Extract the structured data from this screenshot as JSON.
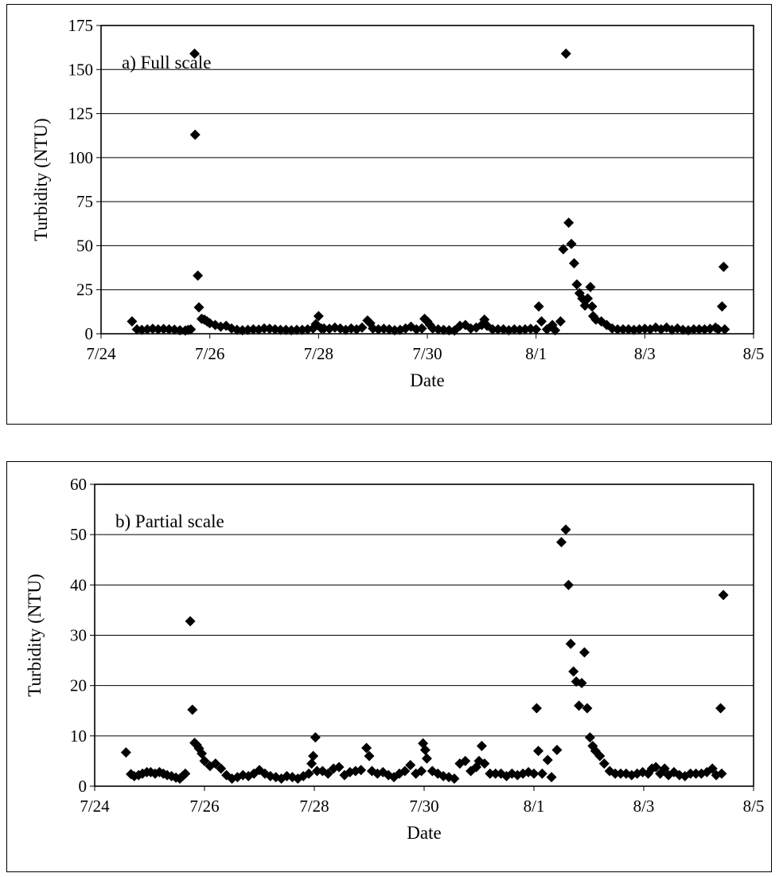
{
  "chart_data": [
    {
      "type": "scatter",
      "title": "a) Full scale",
      "xlabel": "Date",
      "ylabel": "Turbidity (NTU)",
      "x_ticks": [
        "7/24",
        "7/26",
        "7/28",
        "7/30",
        "8/1",
        "8/3",
        "8/5"
      ],
      "y_ticks": [
        "0",
        "25",
        "50",
        "75",
        "100",
        "125",
        "150",
        "175"
      ],
      "xlim_days": [
        0,
        12
      ],
      "ylim": [
        0,
        175
      ],
      "grid": "horizontal",
      "marker": "diamond",
      "series_color": "#000000",
      "points": [
        [
          0.57,
          7
        ],
        [
          0.66,
          2.5
        ],
        [
          0.75,
          2.2
        ],
        [
          0.85,
          2.5
        ],
        [
          0.95,
          2.8
        ],
        [
          1.05,
          2.5
        ],
        [
          1.15,
          2.7
        ],
        [
          1.25,
          2.5
        ],
        [
          1.35,
          2.3
        ],
        [
          1.45,
          2
        ],
        [
          1.55,
          1.8
        ],
        [
          1.6,
          2.2
        ],
        [
          1.65,
          2.5
        ],
        [
          1.72,
          159
        ],
        [
          1.73,
          113
        ],
        [
          1.78,
          33
        ],
        [
          1.8,
          15
        ],
        [
          1.85,
          8.5
        ],
        [
          1.9,
          8
        ],
        [
          1.95,
          7
        ],
        [
          2.0,
          6
        ],
        [
          2.1,
          5
        ],
        [
          2.2,
          4
        ],
        [
          2.3,
          4.5
        ],
        [
          2.4,
          3
        ],
        [
          2.5,
          2.2
        ],
        [
          2.6,
          2
        ],
        [
          2.7,
          2.2
        ],
        [
          2.8,
          2.5
        ],
        [
          2.9,
          2.3
        ],
        [
          3.0,
          3
        ],
        [
          3.1,
          2.8
        ],
        [
          3.2,
          2.5
        ],
        [
          3.3,
          2.2
        ],
        [
          3.4,
          2.2
        ],
        [
          3.5,
          2
        ],
        [
          3.6,
          2.2
        ],
        [
          3.7,
          2.2
        ],
        [
          3.8,
          2.5
        ],
        [
          3.9,
          3
        ],
        [
          3.95,
          5.5
        ],
        [
          4.0,
          10
        ],
        [
          4.05,
          3
        ],
        [
          4.1,
          3
        ],
        [
          4.2,
          2.8
        ],
        [
          4.3,
          3.5
        ],
        [
          4.4,
          3
        ],
        [
          4.5,
          2.2
        ],
        [
          4.6,
          3
        ],
        [
          4.7,
          2.5
        ],
        [
          4.8,
          3.5
        ],
        [
          4.9,
          7.5
        ],
        [
          4.95,
          6
        ],
        [
          5.0,
          3
        ],
        [
          5.1,
          2.5
        ],
        [
          5.2,
          2.8
        ],
        [
          5.3,
          2.5
        ],
        [
          5.4,
          2
        ],
        [
          5.5,
          2.2
        ],
        [
          5.6,
          3
        ],
        [
          5.7,
          4
        ],
        [
          5.8,
          2.5
        ],
        [
          5.9,
          3
        ],
        [
          5.95,
          8.5
        ],
        [
          6.0,
          7
        ],
        [
          6.05,
          5
        ],
        [
          6.1,
          3
        ],
        [
          6.2,
          2.5
        ],
        [
          6.3,
          2.2
        ],
        [
          6.4,
          2
        ],
        [
          6.5,
          1.8
        ],
        [
          6.6,
          4.5
        ],
        [
          6.7,
          5
        ],
        [
          6.8,
          3
        ],
        [
          6.9,
          3.5
        ],
        [
          7.0,
          5
        ],
        [
          7.05,
          8
        ],
        [
          7.1,
          4.5
        ],
        [
          7.2,
          2.5
        ],
        [
          7.3,
          2.5
        ],
        [
          7.4,
          2.5
        ],
        [
          7.5,
          2
        ],
        [
          7.6,
          2.5
        ],
        [
          7.7,
          2.2
        ],
        [
          7.8,
          2.5
        ],
        [
          7.9,
          2.8
        ],
        [
          8.0,
          2.5
        ],
        [
          8.05,
          15.5
        ],
        [
          8.1,
          7
        ],
        [
          8.2,
          2.5
        ],
        [
          8.3,
          5
        ],
        [
          8.35,
          2
        ],
        [
          8.45,
          7
        ],
        [
          8.5,
          48
        ],
        [
          8.55,
          159
        ],
        [
          8.6,
          63
        ],
        [
          8.65,
          51
        ],
        [
          8.7,
          40
        ],
        [
          8.75,
          28
        ],
        [
          8.8,
          23
        ],
        [
          8.85,
          20
        ],
        [
          8.9,
          16
        ],
        [
          8.95,
          20
        ],
        [
          9.0,
          26.5
        ],
        [
          9.03,
          15.5
        ],
        [
          9.05,
          10
        ],
        [
          9.1,
          8
        ],
        [
          9.2,
          7
        ],
        [
          9.3,
          5
        ],
        [
          9.4,
          3
        ],
        [
          9.5,
          2.5
        ],
        [
          9.6,
          2.5
        ],
        [
          9.7,
          2.5
        ],
        [
          9.8,
          2.2
        ],
        [
          9.9,
          2.5
        ],
        [
          10.0,
          2.8
        ],
        [
          10.1,
          2.5
        ],
        [
          10.2,
          3.5
        ],
        [
          10.3,
          2.5
        ],
        [
          10.4,
          3.5
        ],
        [
          10.5,
          2.2
        ],
        [
          10.6,
          3
        ],
        [
          10.7,
          2.2
        ],
        [
          10.8,
          2
        ],
        [
          10.9,
          2.5
        ],
        [
          11.0,
          2.5
        ],
        [
          11.1,
          2.5
        ],
        [
          11.2,
          2.8
        ],
        [
          11.3,
          3.5
        ],
        [
          11.35,
          2.5
        ],
        [
          11.42,
          15.5
        ],
        [
          11.45,
          38
        ],
        [
          11.47,
          2.5
        ]
      ]
    },
    {
      "type": "scatter",
      "title": "b) Partial scale",
      "xlabel": "Date",
      "ylabel": "Turbidity (NTU)",
      "x_ticks": [
        "7/24",
        "7/26",
        "7/28",
        "7/30",
        "8/1",
        "8/3",
        "8/5"
      ],
      "y_ticks": [
        "0",
        "10",
        "20",
        "30",
        "40",
        "50",
        "60"
      ],
      "xlim_days": [
        0,
        12
      ],
      "ylim": [
        0,
        60
      ],
      "grid": "horizontal",
      "marker": "diamond",
      "series_color": "#000000",
      "points": [
        [
          0.57,
          6.7
        ],
        [
          0.66,
          2.4
        ],
        [
          0.72,
          2
        ],
        [
          0.8,
          2.2
        ],
        [
          0.87,
          2.5
        ],
        [
          0.95,
          2.8
        ],
        [
          1.02,
          2.8
        ],
        [
          1.1,
          2.5
        ],
        [
          1.18,
          2.8
        ],
        [
          1.25,
          2.5
        ],
        [
          1.32,
          2.2
        ],
        [
          1.4,
          2
        ],
        [
          1.48,
          1.7
        ],
        [
          1.55,
          1.5
        ],
        [
          1.6,
          2
        ],
        [
          1.65,
          2.5
        ],
        [
          1.74,
          32.8
        ],
        [
          1.78,
          15.2
        ],
        [
          1.82,
          8.6
        ],
        [
          1.86,
          8.2
        ],
        [
          1.9,
          7.5
        ],
        [
          1.95,
          6.5
        ],
        [
          2.0,
          5
        ],
        [
          2.1,
          4
        ],
        [
          2.2,
          4.5
        ],
        [
          2.3,
          3.5
        ],
        [
          2.4,
          2.2
        ],
        [
          2.5,
          1.5
        ],
        [
          2.6,
          1.8
        ],
        [
          2.7,
          2.2
        ],
        [
          2.8,
          2
        ],
        [
          2.9,
          2.5
        ],
        [
          3.0,
          3.2
        ],
        [
          3.1,
          2.5
        ],
        [
          3.2,
          2
        ],
        [
          3.3,
          1.8
        ],
        [
          3.4,
          1.5
        ],
        [
          3.5,
          2
        ],
        [
          3.6,
          1.8
        ],
        [
          3.7,
          1.5
        ],
        [
          3.8,
          2
        ],
        [
          3.9,
          2.5
        ],
        [
          3.95,
          4.5
        ],
        [
          3.98,
          6
        ],
        [
          4.02,
          9.7
        ],
        [
          4.05,
          3
        ],
        [
          4.15,
          3
        ],
        [
          4.25,
          2.5
        ],
        [
          4.35,
          3.5
        ],
        [
          4.45,
          3.8
        ],
        [
          4.55,
          2.2
        ],
        [
          4.65,
          2.8
        ],
        [
          4.75,
          3
        ],
        [
          4.85,
          3.2
        ],
        [
          4.95,
          7.6
        ],
        [
          5.0,
          6
        ],
        [
          5.05,
          3
        ],
        [
          5.15,
          2.5
        ],
        [
          5.25,
          2.8
        ],
        [
          5.35,
          2.2
        ],
        [
          5.45,
          1.8
        ],
        [
          5.55,
          2.5
        ],
        [
          5.65,
          3
        ],
        [
          5.75,
          4.2
        ],
        [
          5.85,
          2.5
        ],
        [
          5.95,
          3
        ],
        [
          5.98,
          8.5
        ],
        [
          6.02,
          7.2
        ],
        [
          6.05,
          5.5
        ],
        [
          6.15,
          3
        ],
        [
          6.25,
          2.5
        ],
        [
          6.35,
          2
        ],
        [
          6.45,
          1.8
        ],
        [
          6.55,
          1.5
        ],
        [
          6.65,
          4.5
        ],
        [
          6.75,
          5
        ],
        [
          6.85,
          3
        ],
        [
          6.95,
          3.8
        ],
        [
          7.0,
          5
        ],
        [
          7.05,
          8
        ],
        [
          7.1,
          4.5
        ],
        [
          7.2,
          2.5
        ],
        [
          7.3,
          2.5
        ],
        [
          7.4,
          2.5
        ],
        [
          7.5,
          2
        ],
        [
          7.6,
          2.5
        ],
        [
          7.7,
          2.2
        ],
        [
          7.8,
          2.5
        ],
        [
          7.9,
          2.8
        ],
        [
          8.0,
          2.5
        ],
        [
          8.05,
          15.5
        ],
        [
          8.08,
          7
        ],
        [
          8.15,
          2.5
        ],
        [
          8.25,
          5.2
        ],
        [
          8.32,
          1.8
        ],
        [
          8.42,
          7.2
        ],
        [
          8.5,
          48.5
        ],
        [
          8.58,
          51
        ],
        [
          8.63,
          40
        ],
        [
          8.67,
          28.3
        ],
        [
          8.72,
          22.8
        ],
        [
          8.77,
          20.8
        ],
        [
          8.82,
          16
        ],
        [
          8.87,
          20.5
        ],
        [
          8.92,
          26.6
        ],
        [
          8.97,
          15.5
        ],
        [
          9.02,
          9.7
        ],
        [
          9.07,
          8
        ],
        [
          9.12,
          7
        ],
        [
          9.2,
          6
        ],
        [
          9.28,
          4.5
        ],
        [
          9.38,
          3
        ],
        [
          9.48,
          2.5
        ],
        [
          9.58,
          2.5
        ],
        [
          9.68,
          2.5
        ],
        [
          9.78,
          2.2
        ],
        [
          9.88,
          2.5
        ],
        [
          9.98,
          2.8
        ],
        [
          10.08,
          2.5
        ],
        [
          10.15,
          3.5
        ],
        [
          10.22,
          3.8
        ],
        [
          10.3,
          2.5
        ],
        [
          10.38,
          3.5
        ],
        [
          10.45,
          2.2
        ],
        [
          10.55,
          2.8
        ],
        [
          10.65,
          2.2
        ],
        [
          10.75,
          2
        ],
        [
          10.85,
          2.5
        ],
        [
          10.95,
          2.5
        ],
        [
          11.05,
          2.5
        ],
        [
          11.15,
          2.8
        ],
        [
          11.25,
          3.5
        ],
        [
          11.32,
          2.2
        ],
        [
          11.4,
          15.5
        ],
        [
          11.45,
          38
        ],
        [
          11.42,
          2.5
        ]
      ]
    }
  ]
}
